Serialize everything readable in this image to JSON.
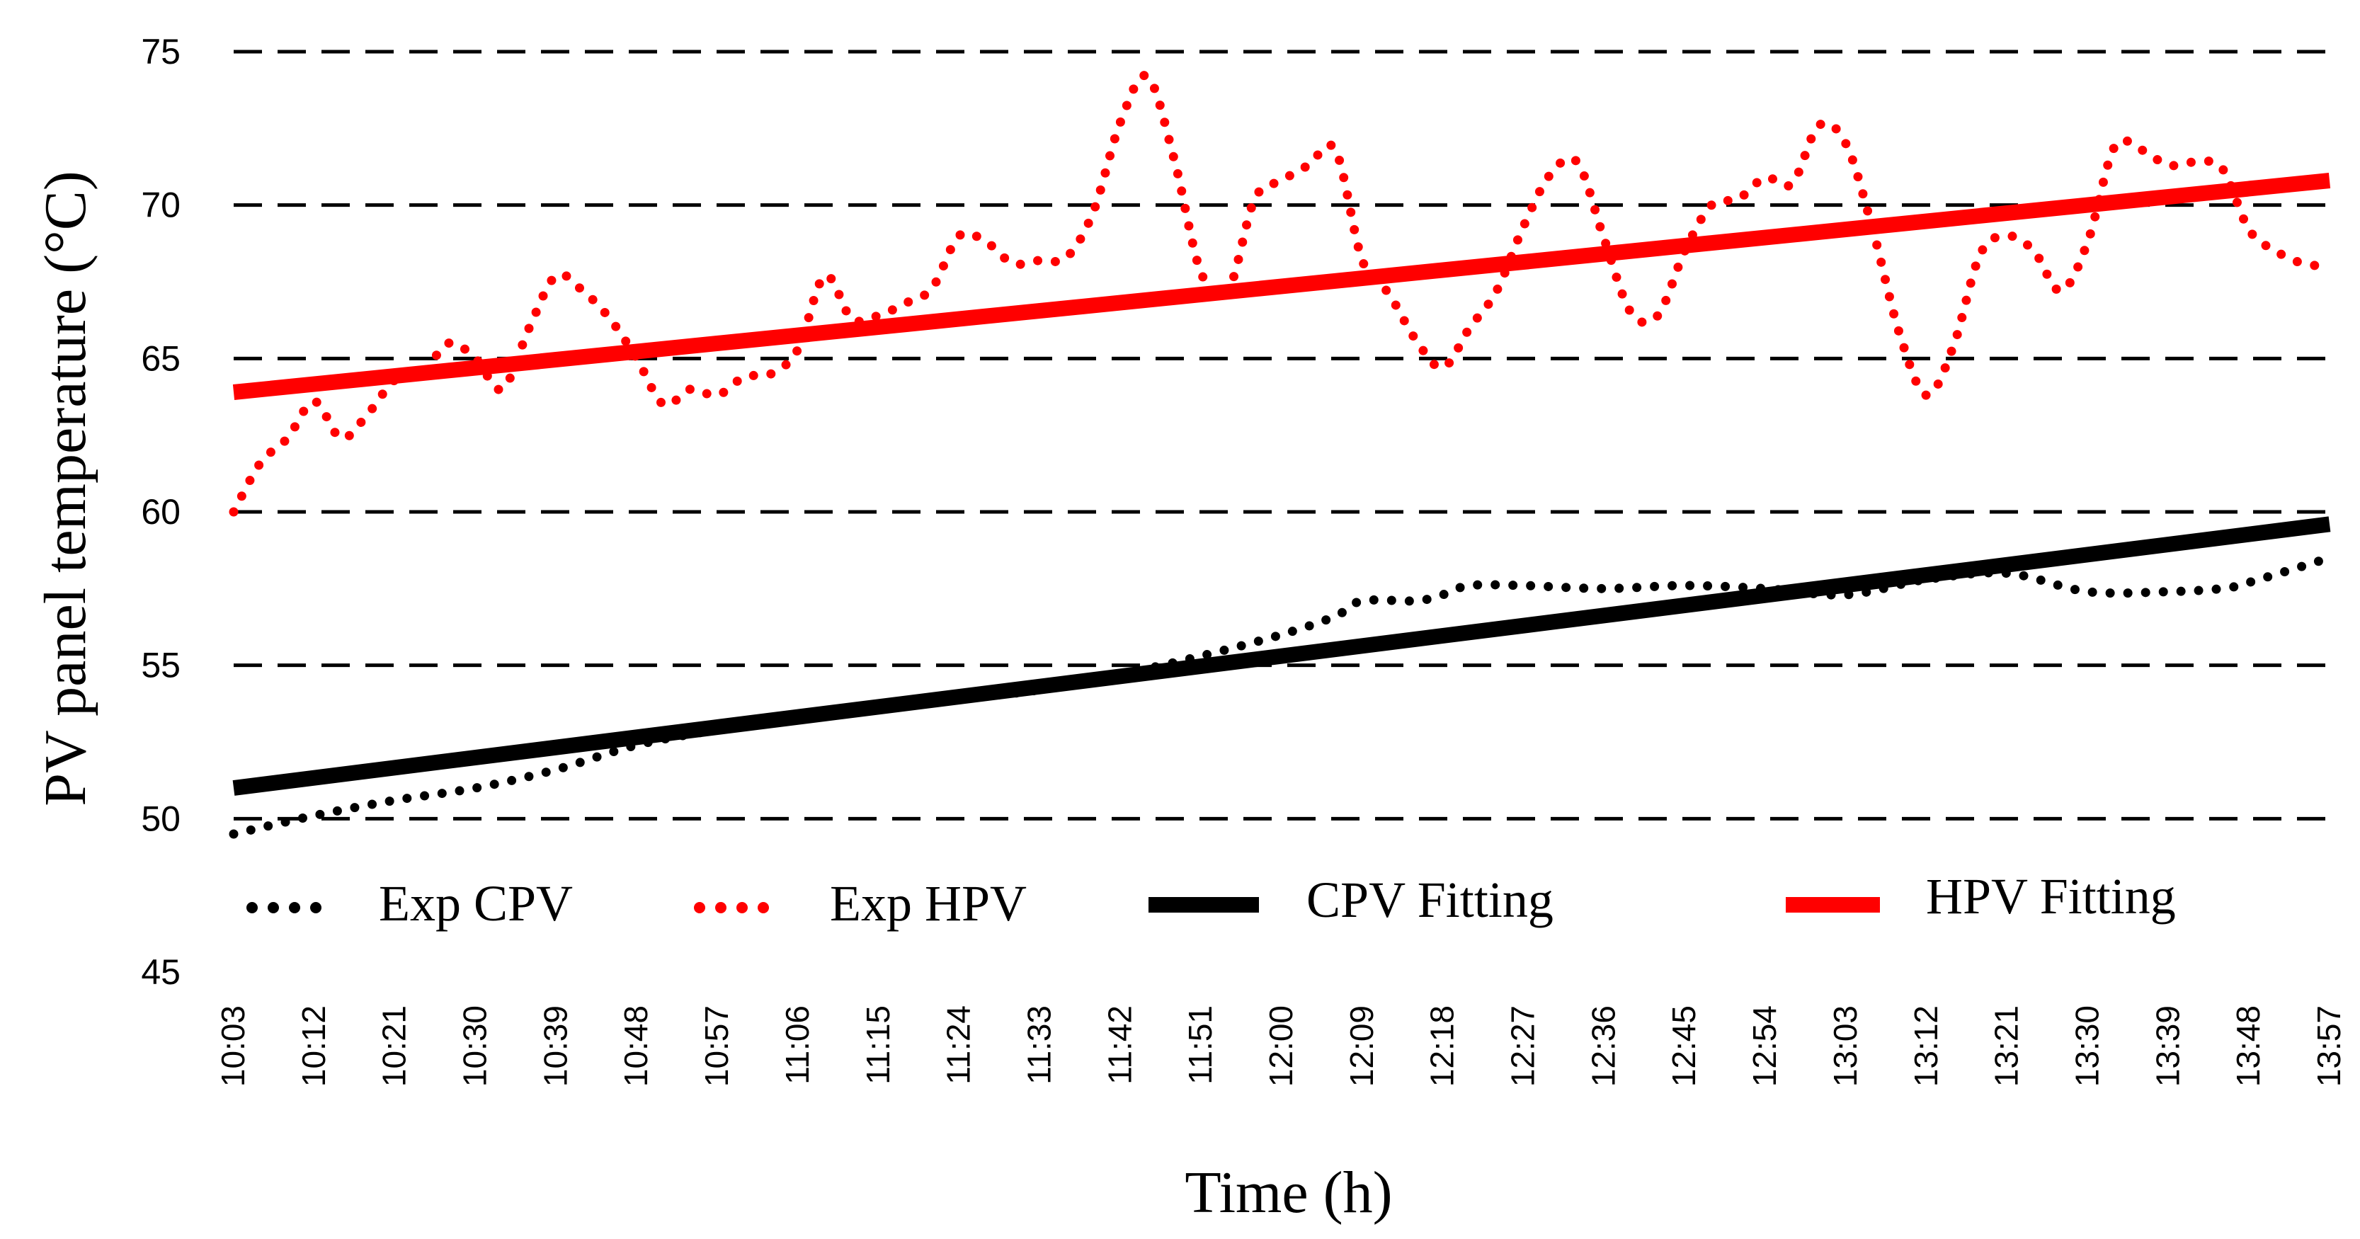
{
  "chart_data": {
    "type": "line",
    "title": "",
    "xlabel": "Time (h)",
    "ylabel": "PV panel temperature (°C)",
    "ylim": [
      45,
      75
    ],
    "yticks": [
      45,
      50,
      55,
      60,
      65,
      70,
      75
    ],
    "grid": "horizontal dashed",
    "legend_position": "inside bottom",
    "x_range": [
      "10:03",
      "13:57"
    ],
    "xtick_labels": [
      "10:03",
      "10:12",
      "10:21",
      "10:30",
      "10:39",
      "10:48",
      "10:57",
      "11:06",
      "11:15",
      "11:24",
      "11:33",
      "11:42",
      "11:51",
      "12:00",
      "12:09",
      "12:18",
      "12:27",
      "12:36",
      "12:45",
      "12:54",
      "13:03",
      "13:12",
      "13:21",
      "13:30",
      "13:39",
      "13:48",
      "13:57"
    ],
    "series": [
      {
        "name": "Exp CPV",
        "style": "dotted",
        "color": "#000000",
        "minutes": [
          0,
          9,
          18,
          27,
          36,
          45,
          54,
          63,
          72,
          81,
          90,
          99,
          108,
          117,
          123,
          126,
          132,
          135,
          138,
          144,
          153,
          162,
          171,
          180,
          189,
          198,
          207,
          216,
          222,
          225,
          234
        ],
        "values": [
          49.5,
          50.1,
          50.6,
          51.0,
          51.6,
          52.4,
          52.9,
          53.3,
          53.6,
          53.9,
          54.2,
          54.7,
          55.3,
          56.0,
          56.6,
          57.1,
          57.1,
          57.3,
          57.6,
          57.6,
          57.5,
          57.6,
          57.5,
          57.3,
          57.8,
          58.0,
          57.4,
          57.4,
          57.5,
          57.7,
          58.5
        ]
      },
      {
        "name": "Exp HPV",
        "style": "dotted",
        "color": "#ff0000",
        "minutes": [
          0,
          3,
          6,
          9,
          12,
          15,
          18,
          21,
          24,
          27,
          30,
          33,
          36,
          39,
          42,
          45,
          48,
          51,
          54,
          57,
          60,
          63,
          66,
          69,
          72,
          75,
          78,
          81,
          84,
          87,
          90,
          93,
          96,
          99,
          102,
          105,
          108,
          111,
          114,
          117,
          120,
          123,
          126,
          129,
          132,
          135,
          138,
          141,
          144,
          147,
          150,
          153,
          156,
          159,
          162,
          165,
          168,
          171,
          174,
          177,
          180,
          183,
          186,
          189,
          192,
          195,
          198,
          201,
          204,
          207,
          210,
          213,
          216,
          219,
          222,
          225,
          228,
          231,
          234
        ],
        "values": [
          60.0,
          61.6,
          62.4,
          63.6,
          62.4,
          63.2,
          64.3,
          64.5,
          65.5,
          65.0,
          64.0,
          66.0,
          67.7,
          67.2,
          66.3,
          65.0,
          63.5,
          64.0,
          63.8,
          64.4,
          64.5,
          65.3,
          67.7,
          66.3,
          66.4,
          66.8,
          67.3,
          69.0,
          68.8,
          68.1,
          68.2,
          68.3,
          69.8,
          72.7,
          74.2,
          71.5,
          67.8,
          67.2,
          70.2,
          70.8,
          71.3,
          71.8,
          68.2,
          67.1,
          65.6,
          64.7,
          66.0,
          67.2,
          69.3,
          71.0,
          71.4,
          68.9,
          66.5,
          66.4,
          68.5,
          70.0,
          70.2,
          70.9,
          70.7,
          72.6,
          72.0,
          69.2,
          65.8,
          63.8,
          65.4,
          68.4,
          69.0,
          68.5,
          67.2,
          68.8,
          71.9,
          71.8,
          71.3,
          71.4,
          71.2,
          69.2,
          68.5,
          68.1,
          68.0
        ]
      },
      {
        "name": "CPV Fitting",
        "style": "solid",
        "color": "#000000",
        "minutes": [
          0,
          234
        ],
        "values": [
          51.0,
          59.6
        ]
      },
      {
        "name": "HPV Fitting",
        "style": "solid",
        "color": "#ff0000",
        "minutes": [
          0,
          234
        ],
        "values": [
          63.9,
          70.8
        ]
      }
    ]
  }
}
